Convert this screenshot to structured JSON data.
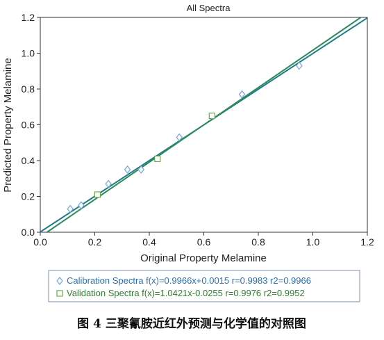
{
  "chart_data": {
    "type": "scatter",
    "title": "All Spectra",
    "xlabel": "Original Property Melamine",
    "ylabel": "Predicted Property Melamine",
    "xlim": [
      0,
      1.2
    ],
    "ylim": [
      0,
      1.2
    ],
    "xticks": [
      "0.0",
      "0.2",
      "0.4",
      "0.6",
      "0.8",
      "1.0",
      "1.2"
    ],
    "yticks": [
      "0.0",
      "0.2",
      "0.4",
      "0.6",
      "0.8",
      "1.0",
      "1.2"
    ],
    "grid": false,
    "legend_position": "bottom",
    "series": [
      {
        "name": "Calibration Spectra f(x)=0.9966x+0.0015 r=0.9983 r2=0.9966",
        "marker": "diamond",
        "color": "#6fa8dc",
        "line_color": "#1f7a8c",
        "slope": 0.9966,
        "intercept": 0.0015,
        "points": [
          [
            0.11,
            0.13
          ],
          [
            0.15,
            0.15
          ],
          [
            0.25,
            0.27
          ],
          [
            0.32,
            0.35
          ],
          [
            0.37,
            0.35
          ],
          [
            0.51,
            0.53
          ],
          [
            0.74,
            0.77
          ],
          [
            0.95,
            0.93
          ]
        ]
      },
      {
        "name": "Validation Spectra f(x)=1.0421x-0.0255 r=0.9976 r2=0.9952",
        "marker": "square",
        "color": "#6aa84f",
        "line_color": "#2e8b57",
        "slope": 1.0421,
        "intercept": -0.0255,
        "points": [
          [
            0.21,
            0.21
          ],
          [
            0.43,
            0.41
          ],
          [
            0.63,
            0.65
          ]
        ]
      }
    ]
  },
  "caption": "图 4 三聚氰胺近红外预测与化学值的对照图"
}
